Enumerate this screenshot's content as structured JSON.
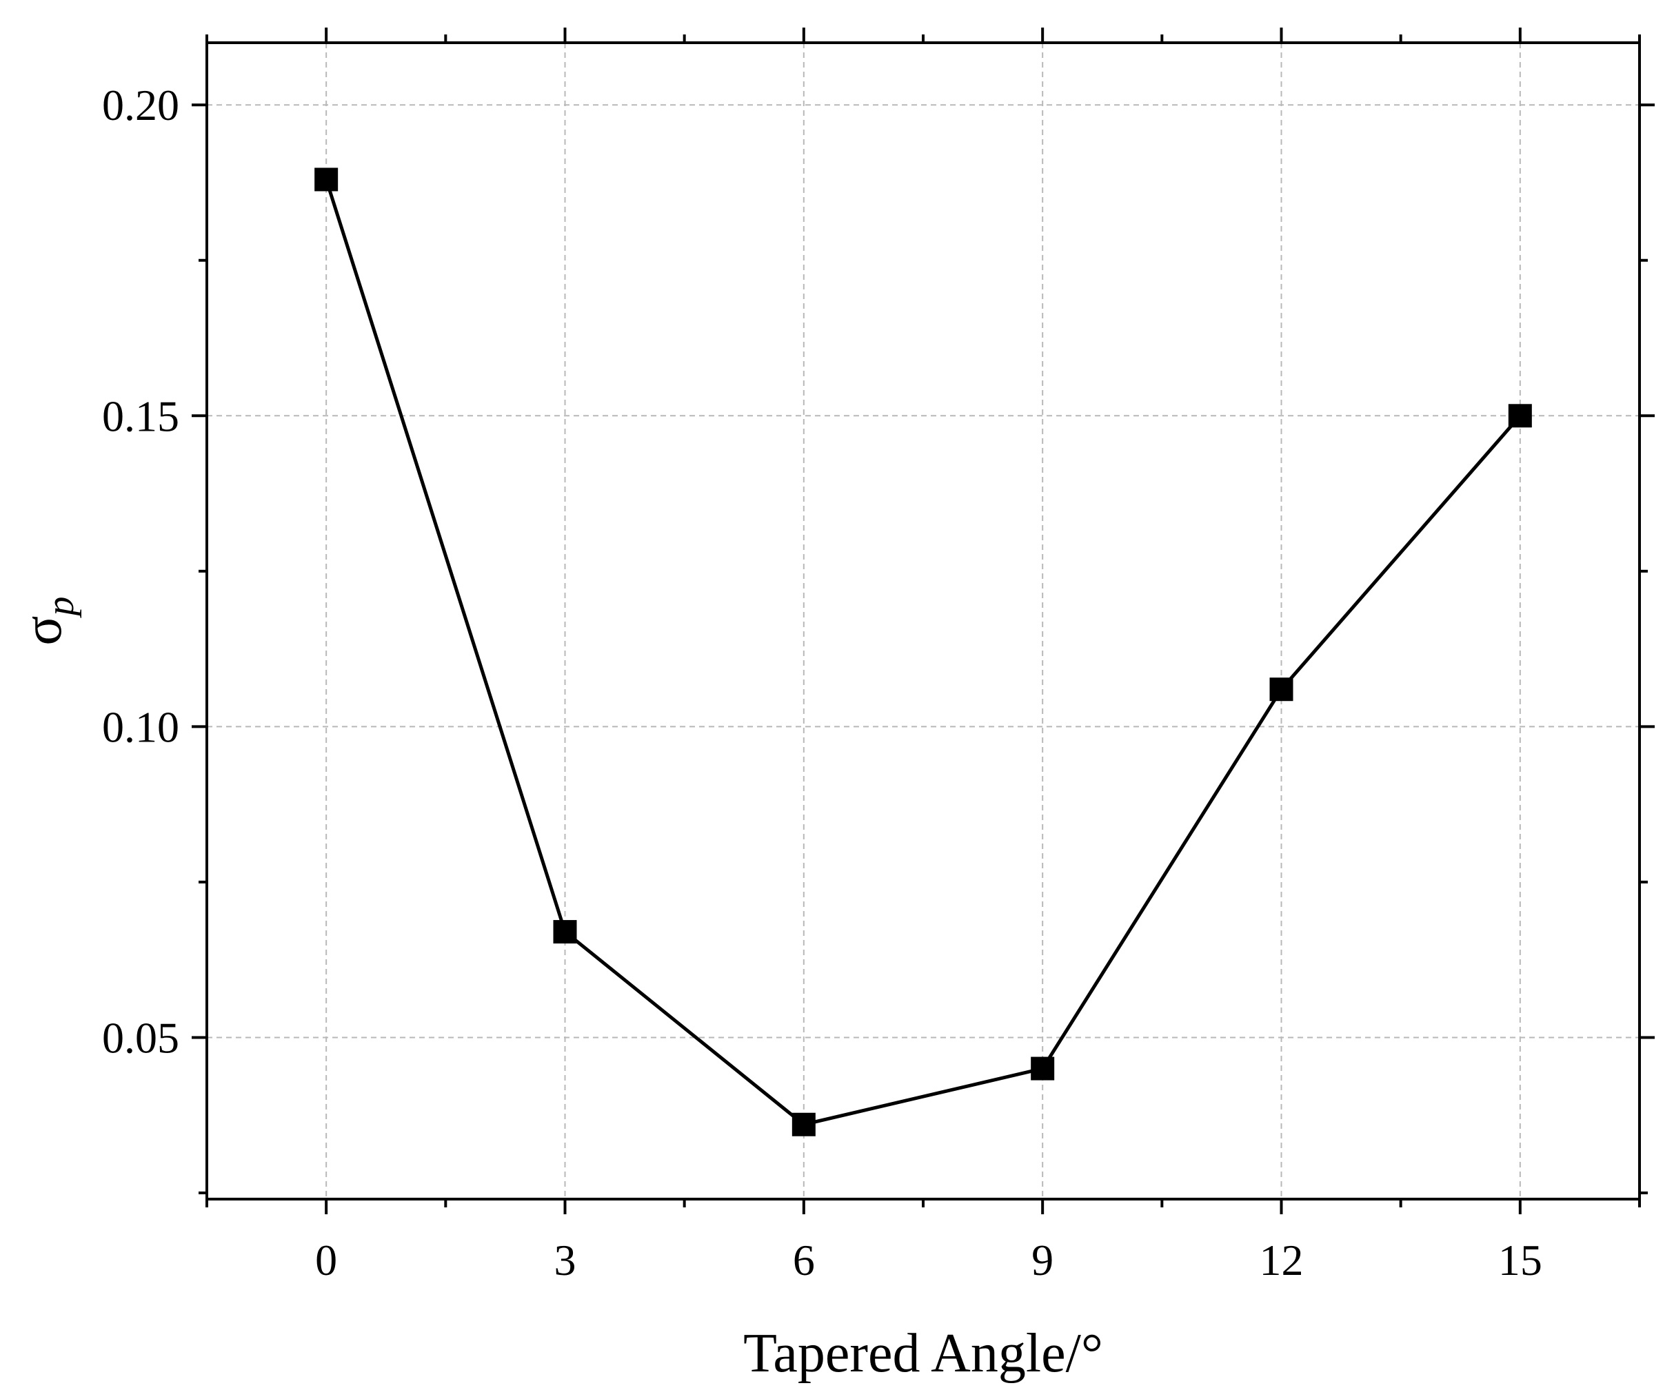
{
  "chart_data": {
    "type": "line",
    "title": "",
    "xlabel": "Tapered Angle/°",
    "ylabel": {
      "base": "σ",
      "sub": "p"
    },
    "xlim": [
      -1.5,
      16.5
    ],
    "ylim": [
      0.024,
      0.21
    ],
    "x_ticks": [
      0,
      3,
      6,
      9,
      12,
      15
    ],
    "y_ticks": [
      0.05,
      0.1,
      0.15,
      0.2
    ],
    "y_tick_labels": [
      "0.05",
      "0.10",
      "0.15",
      "0.20"
    ],
    "x_minor_ticks": [
      -1.5,
      1.5,
      4.5,
      7.5,
      10.5,
      13.5,
      16.5
    ],
    "y_minor_ticks": [
      0.025,
      0.075,
      0.125,
      0.175
    ],
    "grid": true,
    "legend": "none",
    "series": [
      {
        "color": "#000000",
        "marker": "square",
        "x": [
          0,
          3,
          6,
          9,
          12,
          15
        ],
        "y": [
          0.188,
          0.067,
          0.036,
          0.045,
          0.106,
          0.15
        ]
      }
    ]
  }
}
